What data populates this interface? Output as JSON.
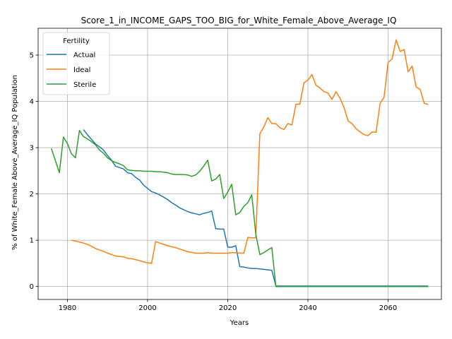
{
  "chart_data": {
    "type": "line",
    "title": "Score_1_in_INCOME_GAPS_TOO_BIG_for_White_Female_Above_Average_IQ",
    "xlabel": "Years",
    "ylabel": "% of White_Female Above_Average_IQ Population",
    "xlim": [
      1972.7,
      2073.3
    ],
    "ylim": [
      -0.28,
      5.58
    ],
    "xticks": [
      1980,
      2000,
      2020,
      2040,
      2060
    ],
    "yticks": [
      0,
      1,
      2,
      3,
      4,
      5
    ],
    "grid": true,
    "legend": {
      "title": "Fertility",
      "placement": "top-left"
    },
    "series": [
      {
        "name": "Actual",
        "color": "#1f77b4",
        "x": [
          1984,
          1985,
          1986,
          1987,
          1988,
          1989,
          1990,
          1991,
          1992,
          1993,
          1994,
          1995,
          1996,
          1997,
          1998,
          1999,
          2000,
          2001,
          2002,
          2003,
          2004,
          2005,
          2006,
          2007,
          2008,
          2009,
          2010,
          2011,
          2012,
          2013,
          2014,
          2015,
          2016,
          2017,
          2018,
          2019,
          2020,
          2021,
          2022,
          2023,
          2024,
          2025,
          2026,
          2027,
          2028,
          2029,
          2030,
          2031,
          2032,
          2035,
          2040,
          2045,
          2050,
          2055,
          2060,
          2065,
          2070
        ],
        "y": [
          3.39,
          3.28,
          3.18,
          3.08,
          3.02,
          2.95,
          2.83,
          2.73,
          2.6,
          2.57,
          2.54,
          2.46,
          2.44,
          2.36,
          2.3,
          2.19,
          2.12,
          2.05,
          2.02,
          1.98,
          1.93,
          1.88,
          1.81,
          1.76,
          1.7,
          1.66,
          1.62,
          1.59,
          1.57,
          1.55,
          1.58,
          1.6,
          1.63,
          1.25,
          1.24,
          1.24,
          0.85,
          0.85,
          0.88,
          0.43,
          0.42,
          0.4,
          0.39,
          0.39,
          0.38,
          0.37,
          0.36,
          0.35,
          0.01,
          0.01,
          0.01,
          0.01,
          0.01,
          0.01,
          0.01,
          0.01,
          0.01
        ]
      },
      {
        "name": "Ideal",
        "color": "#ff7f0e",
        "x": [
          1981,
          1982,
          1983,
          1984,
          1985,
          1986,
          1987,
          1988,
          1989,
          1990,
          1991,
          1992,
          1993,
          1994,
          1995,
          1996,
          1997,
          1998,
          1999,
          2000,
          2001,
          2002,
          2003,
          2004,
          2005,
          2006,
          2007,
          2008,
          2009,
          2010,
          2011,
          2012,
          2013,
          2014,
          2015,
          2016,
          2017,
          2018,
          2019,
          2020,
          2021,
          2022,
          2023,
          2024,
          2025,
          2026,
          2027,
          2028,
          2029,
          2030,
          2031,
          2032,
          2033,
          2034,
          2035,
          2036,
          2037,
          2038,
          2039,
          2040,
          2041,
          2042,
          2043,
          2044,
          2045,
          2046,
          2047,
          2048,
          2049,
          2050,
          2051,
          2052,
          2053,
          2054,
          2055,
          2056,
          2057,
          2058,
          2059,
          2060,
          2061,
          2062,
          2063,
          2064,
          2065,
          2066,
          2067,
          2068,
          2069,
          2070
        ],
        "y": [
          1.0,
          0.98,
          0.96,
          0.94,
          0.91,
          0.87,
          0.82,
          0.79,
          0.76,
          0.72,
          0.69,
          0.66,
          0.65,
          0.64,
          0.61,
          0.6,
          0.58,
          0.56,
          0.53,
          0.51,
          0.5,
          0.97,
          0.94,
          0.91,
          0.88,
          0.86,
          0.84,
          0.81,
          0.78,
          0.75,
          0.74,
          0.72,
          0.72,
          0.72,
          0.73,
          0.72,
          0.72,
          0.72,
          0.72,
          0.72,
          0.73,
          0.73,
          0.72,
          0.72,
          1.06,
          1.05,
          1.05,
          3.3,
          3.45,
          3.65,
          3.52,
          3.52,
          3.43,
          3.39,
          3.52,
          3.49,
          3.94,
          3.94,
          4.4,
          4.46,
          4.58,
          4.35,
          4.29,
          4.21,
          4.18,
          4.04,
          4.21,
          4.07,
          3.87,
          3.58,
          3.52,
          3.41,
          3.34,
          3.28,
          3.26,
          3.34,
          3.33,
          3.96,
          4.09,
          4.84,
          4.92,
          5.33,
          5.08,
          5.12,
          4.64,
          4.76,
          4.31,
          4.26,
          3.96,
          3.93
        ]
      },
      {
        "name": "Sterile",
        "color": "#2ca02c",
        "x": [
          1976,
          1977,
          1978,
          1979,
          1980,
          1981,
          1982,
          1983,
          1984,
          1985,
          1986,
          1987,
          1988,
          1989,
          1990,
          1991,
          1992,
          1993,
          1994,
          1995,
          1996,
          1997,
          1998,
          1999,
          2000,
          2001,
          2002,
          2003,
          2004,
          2005,
          2006,
          2007,
          2008,
          2009,
          2010,
          2011,
          2012,
          2013,
          2014,
          2015,
          2016,
          2017,
          2018,
          2019,
          2020,
          2021,
          2022,
          2023,
          2024,
          2025,
          2026,
          2027,
          2028,
          2029,
          2030,
          2031,
          2032,
          2035,
          2040,
          2045,
          2050,
          2055,
          2060,
          2065,
          2070
        ],
        "y": [
          2.98,
          2.72,
          2.46,
          3.23,
          3.09,
          2.87,
          2.78,
          3.37,
          3.24,
          3.19,
          3.13,
          3.06,
          2.95,
          2.88,
          2.78,
          2.72,
          2.68,
          2.65,
          2.61,
          2.52,
          2.51,
          2.5,
          2.5,
          2.49,
          2.49,
          2.49,
          2.48,
          2.48,
          2.47,
          2.46,
          2.43,
          2.42,
          2.42,
          2.42,
          2.41,
          2.38,
          2.41,
          2.49,
          2.6,
          2.73,
          2.28,
          2.32,
          2.42,
          1.9,
          2.04,
          2.21,
          1.55,
          1.6,
          1.73,
          1.81,
          1.98,
          1.13,
          0.69,
          0.73,
          0.79,
          0.84,
          0.0,
          0.0,
          0.0,
          0.0,
          0.0,
          0.0,
          0.0,
          0.0,
          0.0
        ]
      }
    ]
  }
}
